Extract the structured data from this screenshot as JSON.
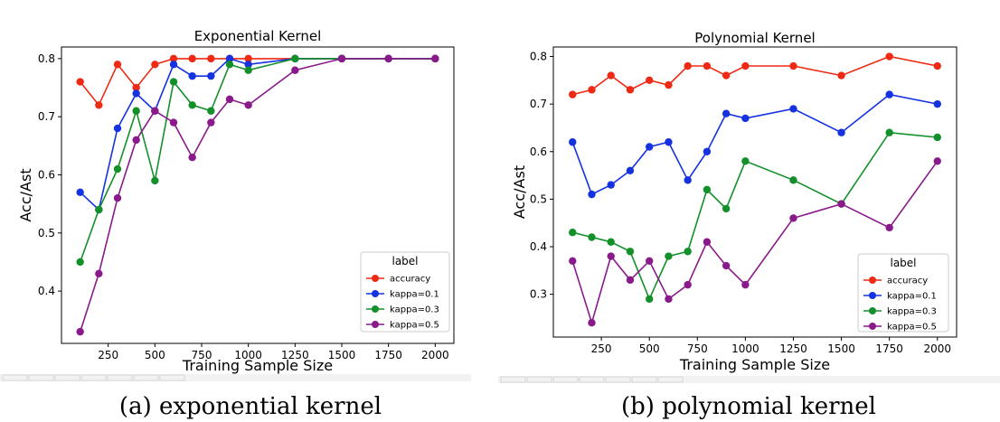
{
  "colors": {
    "accuracy": "#ee2a14",
    "kappa=0.1": "#1432e0",
    "kappa=0.3": "#13902a",
    "kappa=0.5": "#8a1a8c"
  },
  "chart_data": [
    {
      "type": "line",
      "title": "Exponential Kernel",
      "xlabel": "Training Sample Size",
      "ylabel": "Acc/Ast",
      "caption": "(a) exponential kernel",
      "legend_title": "label",
      "xlim": [
        0,
        2100
      ],
      "ylim": [
        0.31,
        0.82
      ],
      "xticks": [
        250,
        500,
        750,
        1000,
        1250,
        1500,
        1750,
        2000
      ],
      "yticks": [
        0.4,
        0.5,
        0.6,
        0.7,
        0.8
      ],
      "x": [
        100,
        200,
        300,
        400,
        500,
        600,
        700,
        800,
        900,
        1000,
        1250,
        1500,
        1750,
        2000
      ],
      "series": [
        {
          "name": "accuracy",
          "values": [
            0.76,
            0.72,
            0.79,
            0.75,
            0.79,
            0.8,
            0.8,
            0.8,
            0.8,
            0.8,
            0.8,
            0.8,
            0.8,
            0.8
          ]
        },
        {
          "name": "kappa=0.1",
          "values": [
            0.57,
            0.54,
            0.68,
            0.74,
            0.71,
            0.79,
            0.77,
            0.77,
            0.8,
            0.79,
            0.8,
            0.8,
            0.8,
            0.8
          ]
        },
        {
          "name": "kappa=0.3",
          "values": [
            0.45,
            0.54,
            0.61,
            0.71,
            0.59,
            0.76,
            0.72,
            0.71,
            0.79,
            0.78,
            0.8,
            0.8,
            0.8,
            0.8
          ]
        },
        {
          "name": "kappa=0.5",
          "values": [
            0.33,
            0.43,
            0.56,
            0.66,
            0.71,
            0.69,
            0.63,
            0.69,
            0.73,
            0.72,
            0.78,
            0.8,
            0.8,
            0.8
          ]
        }
      ]
    },
    {
      "type": "line",
      "title": "Polynomial Kernel",
      "xlabel": "Training Sample Size",
      "ylabel": "Acc/Ast",
      "caption": "(b) polynomial kernel",
      "legend_title": "label",
      "xlim": [
        0,
        2100
      ],
      "ylim": [
        0.21,
        0.82
      ],
      "xticks": [
        250,
        500,
        750,
        1000,
        1250,
        1500,
        1750,
        2000
      ],
      "yticks": [
        0.3,
        0.4,
        0.5,
        0.6,
        0.7,
        0.8
      ],
      "x": [
        100,
        200,
        300,
        400,
        500,
        600,
        700,
        800,
        900,
        1000,
        1250,
        1500,
        1750,
        2000
      ],
      "series": [
        {
          "name": "accuracy",
          "values": [
            0.72,
            0.73,
            0.76,
            0.73,
            0.75,
            0.74,
            0.78,
            0.78,
            0.76,
            0.78,
            0.78,
            0.76,
            0.8,
            0.78
          ]
        },
        {
          "name": "kappa=0.1",
          "values": [
            0.62,
            0.51,
            0.53,
            0.56,
            0.61,
            0.62,
            0.54,
            0.6,
            0.68,
            0.67,
            0.69,
            0.64,
            0.72,
            0.7
          ]
        },
        {
          "name": "kappa=0.3",
          "values": [
            0.43,
            0.42,
            0.41,
            0.39,
            0.29,
            0.38,
            0.39,
            0.52,
            0.48,
            0.58,
            0.54,
            0.49,
            0.64,
            0.63
          ]
        },
        {
          "name": "kappa=0.5",
          "values": [
            0.37,
            0.24,
            0.38,
            0.33,
            0.37,
            0.29,
            0.32,
            0.41,
            0.36,
            0.32,
            0.46,
            0.49,
            0.44,
            0.58
          ]
        }
      ]
    }
  ]
}
